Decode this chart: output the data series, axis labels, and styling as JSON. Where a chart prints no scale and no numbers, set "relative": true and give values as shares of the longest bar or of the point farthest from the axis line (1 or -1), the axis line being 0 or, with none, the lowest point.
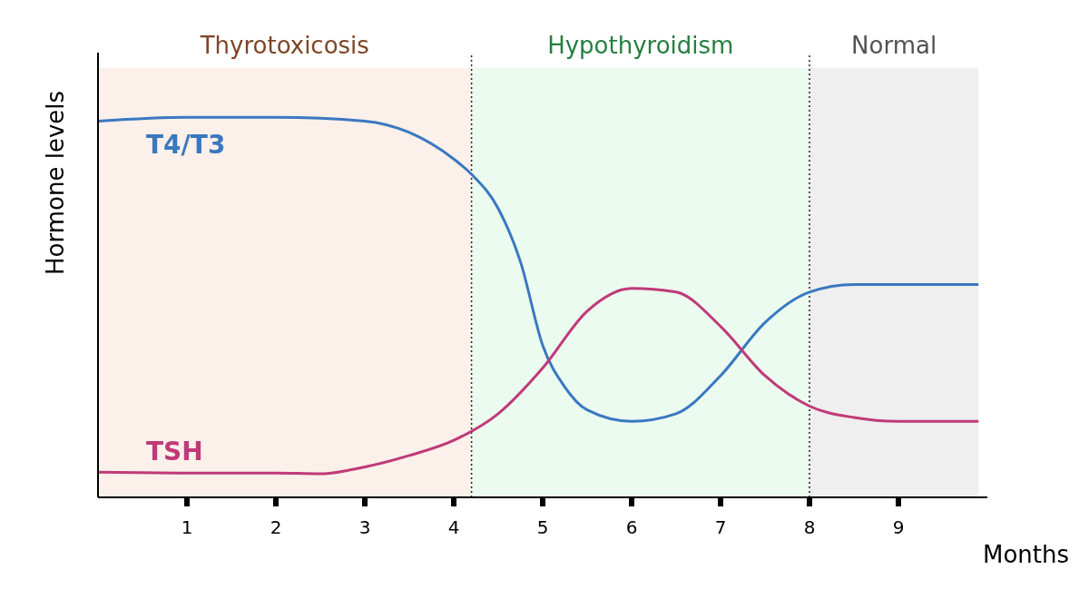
{
  "chart_data": {
    "type": "line",
    "relative": true,
    "xlabel": "Months",
    "ylabel": "Hormone levels",
    "xlim": [
      0,
      10
    ],
    "xticks": [
      1,
      2,
      3,
      4,
      5,
      6,
      7,
      8,
      9
    ],
    "marker": "none",
    "line_style": "solid",
    "series": [
      {
        "name": "T4/T3",
        "color": "#3a78c0",
        "x": [
          0,
          1,
          2,
          3,
          3.5,
          4,
          4.2,
          4.5,
          4.75,
          5,
          5.25,
          5.5,
          6,
          6.5,
          7,
          7.5,
          8,
          8.5,
          9,
          9.9
        ],
        "values": [
          0.99,
          1,
          1,
          0.99,
          0.96,
          0.89,
          0.85,
          0.76,
          0.62,
          0.4,
          0.29,
          0.23,
          0.2,
          0.22,
          0.32,
          0.46,
          0.54,
          0.56,
          0.56,
          0.56
        ]
      },
      {
        "name": "TSH",
        "color": "#c03a78",
        "x": [
          0,
          1,
          2,
          2.5,
          3,
          3.5,
          4,
          4.5,
          5,
          5.5,
          6,
          6.5,
          7,
          7.5,
          8,
          8.5,
          9,
          9.9
        ],
        "values": [
          0.066,
          0.064,
          0.064,
          0.062,
          0.08,
          0.11,
          0.15,
          0.22,
          0.34,
          0.49,
          0.55,
          0.54,
          0.45,
          0.32,
          0.24,
          0.21,
          0.2,
          0.2
        ]
      }
    ],
    "bands": [
      {
        "axis": "x",
        "from": 0,
        "to": 4.2,
        "label": "Thyrotoxicosis",
        "color": "#fbf0ea"
      },
      {
        "axis": "x",
        "from": 4.2,
        "to": 8,
        "label": "Hypothyroidism",
        "color": "#ebfbf0"
      },
      {
        "axis": "x",
        "from": 8,
        "to": 9.9,
        "label": "Normal",
        "color": "#efefef"
      }
    ],
    "ref_lines": [
      {
        "axis": "x",
        "value": 4.2,
        "color": "#222222",
        "line_style": "dotted"
      },
      {
        "axis": "x",
        "value": 8,
        "color": "#222222",
        "line_style": "dotted"
      }
    ]
  }
}
